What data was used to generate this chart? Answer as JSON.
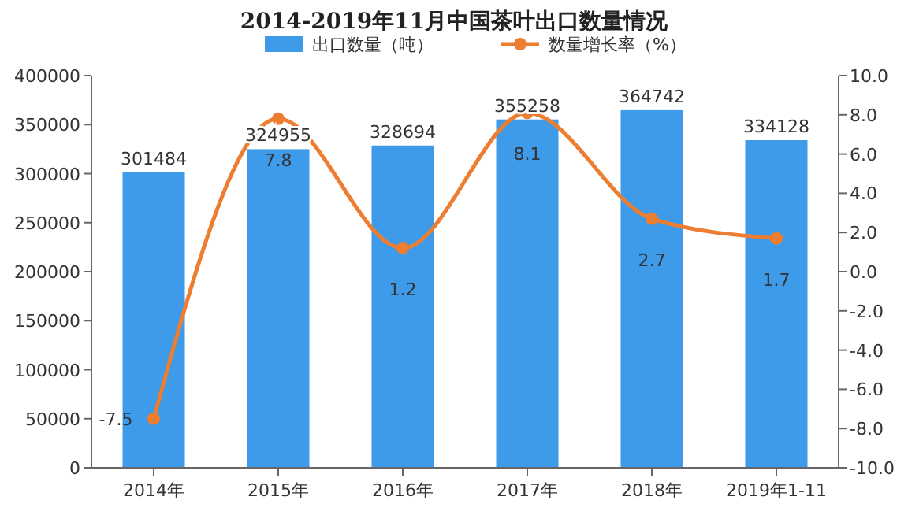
{
  "chart_data": {
    "type": "bar",
    "title": "2014-2019年11月中国茶叶出口数量情况",
    "categories": [
      "2014年",
      "2015年",
      "2016年",
      "2017年",
      "2018年",
      "2019年1-11"
    ],
    "series": [
      {
        "name": "出口数量（吨）",
        "color": "#3d9be9",
        "values": [
          301484,
          324955,
          328694,
          355258,
          364742,
          334128
        ]
      },
      {
        "name": "数量增长率（%）",
        "type": "line",
        "axis": "y2",
        "color": "#ed7d31",
        "values": [
          -7.5,
          7.8,
          1.2,
          8.1,
          2.7,
          1.7
        ]
      }
    ],
    "ylim": [
      0,
      400000
    ],
    "yticks": [
      0,
      50000,
      100000,
      150000,
      200000,
      250000,
      300000,
      350000,
      400000
    ],
    "y2lim": [
      -10,
      10
    ],
    "y2ticks": [
      {
        "value": -10,
        "label": "-10.0"
      },
      {
        "value": -8,
        "label": "-8.0"
      },
      {
        "value": -6,
        "label": "-6.0"
      },
      {
        "value": -4,
        "label": "-4.0"
      },
      {
        "value": -2,
        "label": "-2.0"
      },
      {
        "value": 0,
        "label": "0.0"
      },
      {
        "value": 2,
        "label": "2.0"
      },
      {
        "value": 4,
        "label": "4.0"
      },
      {
        "value": 6,
        "label": "6.0"
      },
      {
        "value": 8,
        "label": "8.0"
      },
      {
        "value": 10,
        "label": "10.0"
      }
    ],
    "data_labels": true,
    "legend": "top",
    "marker": "circle",
    "grid": false
  }
}
